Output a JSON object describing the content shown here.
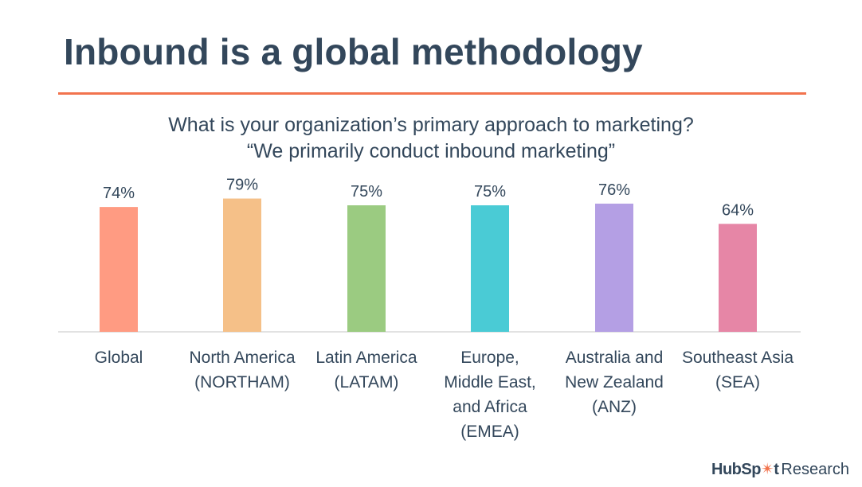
{
  "slide": {
    "title": "Inbound is a global methodology"
  },
  "chart_data": {
    "type": "bar",
    "title": "What is your organization’s primary approach to marketing?",
    "subtitle": "“We primarily conduct inbound marketing”",
    "categories": [
      "Global",
      "North America\n(NORTHAM)",
      "Latin America\n(LATAM)",
      "Europe,\nMiddle East,\nand Africa\n(EMEA)",
      "Australia and\nNew Zealand\n(ANZ)",
      "Southeast Asia\n(SEA)"
    ],
    "values": [
      74,
      79,
      75,
      75,
      76,
      64
    ],
    "value_labels": [
      "74%",
      "79%",
      "75%",
      "75%",
      "76%",
      "64%"
    ],
    "colors": [
      "#ff9b82",
      "#f5c088",
      "#9bcb81",
      "#4acbd5",
      "#b49fe4",
      "#e686a6"
    ],
    "ylim": [
      0,
      100
    ],
    "unit": "%",
    "xlabel": "",
    "ylabel": "",
    "grid": false,
    "legend": "none"
  },
  "brand": {
    "logo_text_1": "HubSp",
    "logo_text_2": "t",
    "suffix": "Research",
    "accent_color": "#f2734d"
  }
}
